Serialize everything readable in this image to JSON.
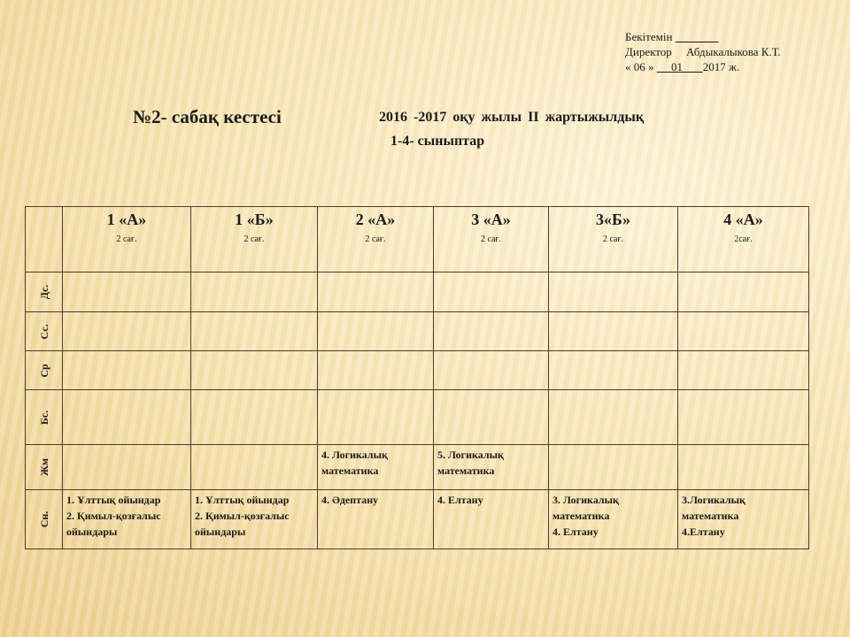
{
  "approval": {
    "line1": "Бекітемін",
    "line2_role": "Директор",
    "line2_name": "Абдыкалыкова К.Т.",
    "day": "« 06 »",
    "month": "01",
    "year": "2017  ж."
  },
  "title": "№2-  сабақ  кестесі",
  "subtitle": "2016 -2017  оқу  жылы    II  жартыжылдық",
  "grades": "1-4- сыныптар",
  "columns": [
    {
      "name": "1 «А»",
      "hours": "2 сағ."
    },
    {
      "name": "1 «Б»",
      "hours": "2 сағ."
    },
    {
      "name": "2 «А»",
      "hours": "2  сағ."
    },
    {
      "name": "3 «А»",
      "hours": "2  сағ."
    },
    {
      "name": "3«Б»",
      "hours": "2  сағ."
    },
    {
      "name": "4 «А»",
      "hours": "2сағ."
    }
  ],
  "rows": [
    {
      "day": "Дс.",
      "cells": [
        [],
        [],
        [],
        [],
        [],
        []
      ]
    },
    {
      "day": "Сс.",
      "cells": [
        [],
        [],
        [],
        [],
        [],
        []
      ]
    },
    {
      "day": "Ср",
      "cells": [
        [],
        [],
        [],
        [],
        [],
        []
      ]
    },
    {
      "day": "Бс.",
      "cells": [
        [],
        [],
        [],
        [],
        [],
        []
      ]
    },
    {
      "day": "Жм",
      "cells": [
        [],
        [],
        [
          "4. Логикалық",
          "математика"
        ],
        [
          "5. Логикалық",
          "математика"
        ],
        [],
        []
      ]
    },
    {
      "day": "Сн.",
      "cells": [
        [
          "1. Ұлттық ойындар",
          "2. Қимыл-қозғалыс",
          "ойындары"
        ],
        [
          "1. Ұлттық ойындар",
          "2. Қимыл-қозғалыс",
          "ойындары"
        ],
        [
          "4. Әдептану"
        ],
        [
          "4. Елтану"
        ],
        [
          "3. Логикалық",
          "математика",
          "4. Елтану"
        ],
        [
          "3.Логикалық",
          "математика",
          "4.Елтану"
        ]
      ]
    }
  ]
}
